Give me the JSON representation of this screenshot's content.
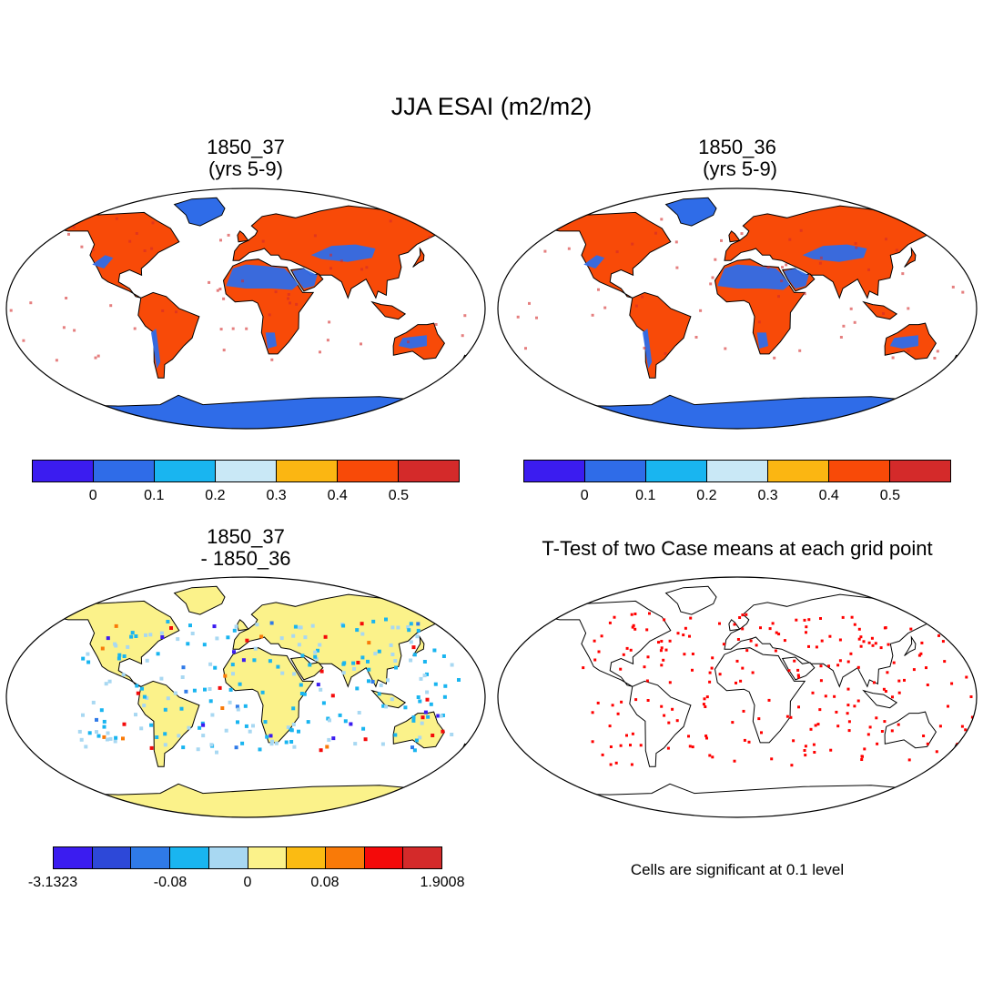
{
  "title": "JJA ESAI (m2/m2)",
  "panels": [
    {
      "title_line1": "1850_37",
      "title_line2": "(yrs 5-9)"
    },
    {
      "title_line1": "1850_36",
      "title_line2": " (yrs 5-9)"
    },
    {
      "title_line1": "1850_37",
      "title_line2": "- 1850_36"
    },
    {
      "title_line1": "T-Test of two Case means at each grid point",
      "title_line2": ""
    }
  ],
  "colorbar_top": {
    "labels": [
      "0",
      "0.1",
      "0.2",
      "0.3",
      "0.4",
      "0.5"
    ],
    "colors": [
      "#3b1cf0",
      "#2f6ce8",
      "#19b5f0",
      "#c9e8f6",
      "#fbb612",
      "#f84a08",
      "#d42a2a"
    ]
  },
  "colorbar_diff": {
    "labels": [
      "-3.1323",
      "-0.08",
      "0",
      "0.08",
      "1.9008"
    ],
    "colors": [
      "#3b1cf0",
      "#2d48d8",
      "#2f7ae8",
      "#19b5f0",
      "#a8d8f2",
      "#fbf28a",
      "#fbbb12",
      "#f97a08",
      "#f40a0a",
      "#d42a2a"
    ]
  },
  "significance_note": "Cells are significant at 0.1 level",
  "map_colors": {
    "ocean": "#ffffff",
    "antarctica_top": "#2f6ce8",
    "antarctica_diff": "#fbf28a",
    "land_top": "#f84a08",
    "land_diff": "#fbf28a",
    "desert_top": "#2f6ce8",
    "significant": "#ff0000"
  }
}
